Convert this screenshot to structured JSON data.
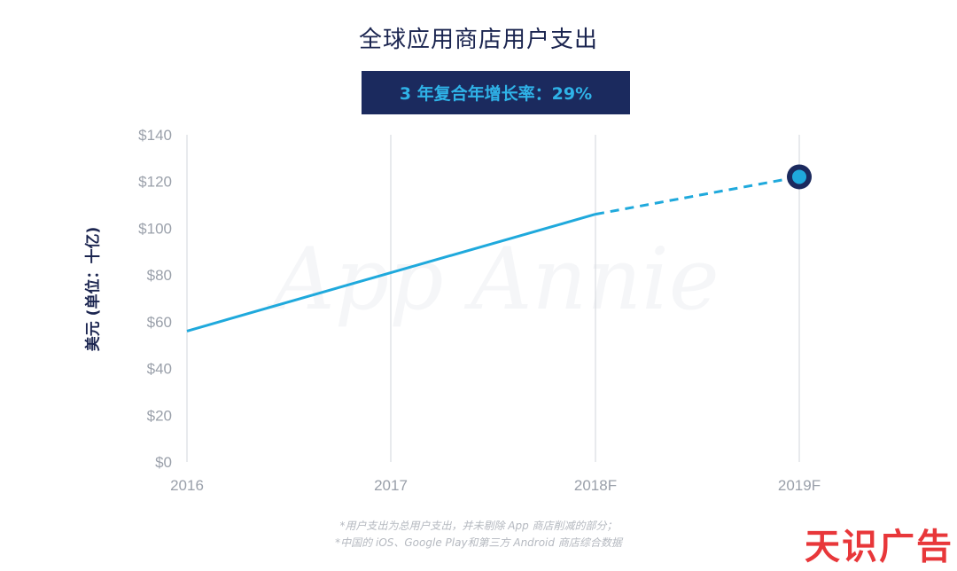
{
  "chart_data": {
    "type": "line",
    "title": "全球应用商店用户支出",
    "subtitle": "3 年复合年增长率：29%",
    "ylabel": "美元 (单位：十亿)",
    "xlabel": "",
    "categories": [
      "2016",
      "2017",
      "2018F",
      "2019F"
    ],
    "y_ticks": [
      "$0",
      "$20",
      "$40",
      "$60",
      "$80",
      "$100",
      "$120",
      "$140"
    ],
    "ylim": [
      0,
      140
    ],
    "series": [
      {
        "values": [
          56,
          81,
          106,
          122
        ],
        "style_note": "solid through 2018F, dashed to 2019F, highlighted marker at 2019F",
        "color": "#1fa9dc"
      }
    ],
    "grid": "vertical lines at each category",
    "watermark": "App Annie"
  },
  "footnotes": [
    "*用户支出为总用户支出，并未剔除 App 商店削减的部分；",
    "*中国的 iOS、Google Play和第三方 Android 商店综合数据"
  ],
  "brand": "天识广告",
  "colors": {
    "title": "#1b2550",
    "cagr_bg": "#1b2a5e",
    "cagr_text": "#2fb3e8",
    "line": "#1fa9dc",
    "grid": "#d9dce1",
    "brand": "#e8373a"
  }
}
